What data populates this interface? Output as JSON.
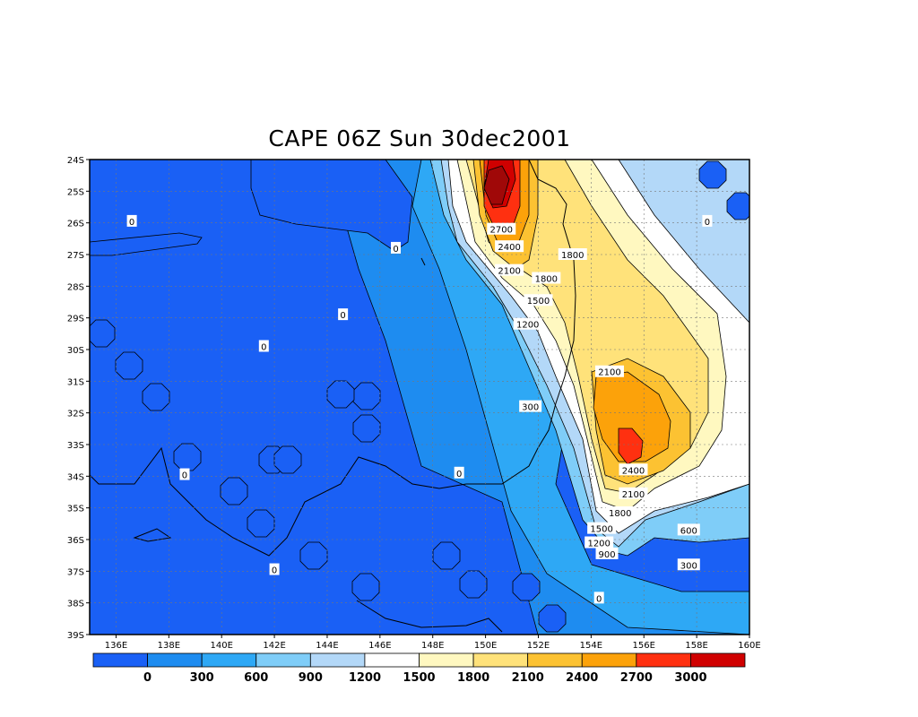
{
  "title": "CAPE 06Z Sun 30dec2001",
  "palette": {
    "lt0": "#1a60f5",
    "b0_300": "#1e8cf0",
    "b300_600": "#2ea8f5",
    "b600_900": "#7fcdf8",
    "b900_1200": "#b3d8f8",
    "b1200_1500": "#ffffff",
    "b1500_1800": "#fff8c0",
    "b1800_2100": "#ffe27a",
    "b2100_2400": "#fcc232",
    "b2400_2700": "#fca20a",
    "b2700_3000": "#ff3010",
    "b3000_plus": "#d00000",
    "top": "#a00808"
  },
  "axes": {
    "lon_labels": [
      "136E",
      "138E",
      "140E",
      "142E",
      "144E",
      "146E",
      "148E",
      "150E",
      "152E",
      "154E",
      "156E",
      "158E",
      "160E"
    ],
    "lat_labels": [
      "24S",
      "25S",
      "26S",
      "27S",
      "28S",
      "29S",
      "30S",
      "31S",
      "32S",
      "33S",
      "34S",
      "35S",
      "36S",
      "37S",
      "38S",
      "39S"
    ],
    "lon_range": [
      135,
      160
    ],
    "lat_range": [
      -24,
      -39
    ],
    "grid": "dotted"
  },
  "contour_labels": [
    {
      "text": "0",
      "lon": 136.6,
      "lat": -25.95
    },
    {
      "text": "0",
      "lon": 146.6,
      "lat": -26.8
    },
    {
      "text": "0",
      "lon": 144.6,
      "lat": -28.9
    },
    {
      "text": "0",
      "lon": 141.6,
      "lat": -29.9
    },
    {
      "text": "0",
      "lon": 138.6,
      "lat": -33.95
    },
    {
      "text": "0",
      "lon": 149.0,
      "lat": -33.9
    },
    {
      "text": "0",
      "lon": 142.0,
      "lat": -36.95
    },
    {
      "text": "0",
      "lon": 158.4,
      "lat": -25.95
    },
    {
      "text": "0",
      "lon": 154.3,
      "lat": -37.85
    },
    {
      "text": "2700",
      "lon": 150.6,
      "lat": -26.2
    },
    {
      "text": "2400",
      "lon": 150.9,
      "lat": -26.75
    },
    {
      "text": "2100",
      "lon": 150.9,
      "lat": -27.5
    },
    {
      "text": "1800",
      "lon": 153.3,
      "lat": -27.0
    },
    {
      "text": "1800",
      "lon": 152.3,
      "lat": -27.75
    },
    {
      "text": "1500",
      "lon": 152.0,
      "lat": -28.45
    },
    {
      "text": "1200",
      "lon": 151.6,
      "lat": -29.2
    },
    {
      "text": "2100",
      "lon": 154.7,
      "lat": -30.7
    },
    {
      "text": "300",
      "lon": 151.7,
      "lat": -31.8
    },
    {
      "text": "2400",
      "lon": 155.6,
      "lat": -33.8
    },
    {
      "text": "2100",
      "lon": 155.6,
      "lat": -34.55
    },
    {
      "text": "1800",
      "lon": 155.1,
      "lat": -35.15
    },
    {
      "text": "1500",
      "lon": 154.4,
      "lat": -35.65
    },
    {
      "text": "1200",
      "lon": 154.3,
      "lat": -36.1
    },
    {
      "text": "900",
      "lon": 154.6,
      "lat": -36.45
    },
    {
      "text": "600",
      "lon": 157.7,
      "lat": -35.7
    },
    {
      "text": "300",
      "lon": 157.7,
      "lat": -36.8
    }
  ],
  "colorbar": {
    "labels": [
      "0",
      "300",
      "600",
      "900",
      "1200",
      "1500",
      "1800",
      "2100",
      "2400",
      "2700",
      "3000"
    ]
  }
}
